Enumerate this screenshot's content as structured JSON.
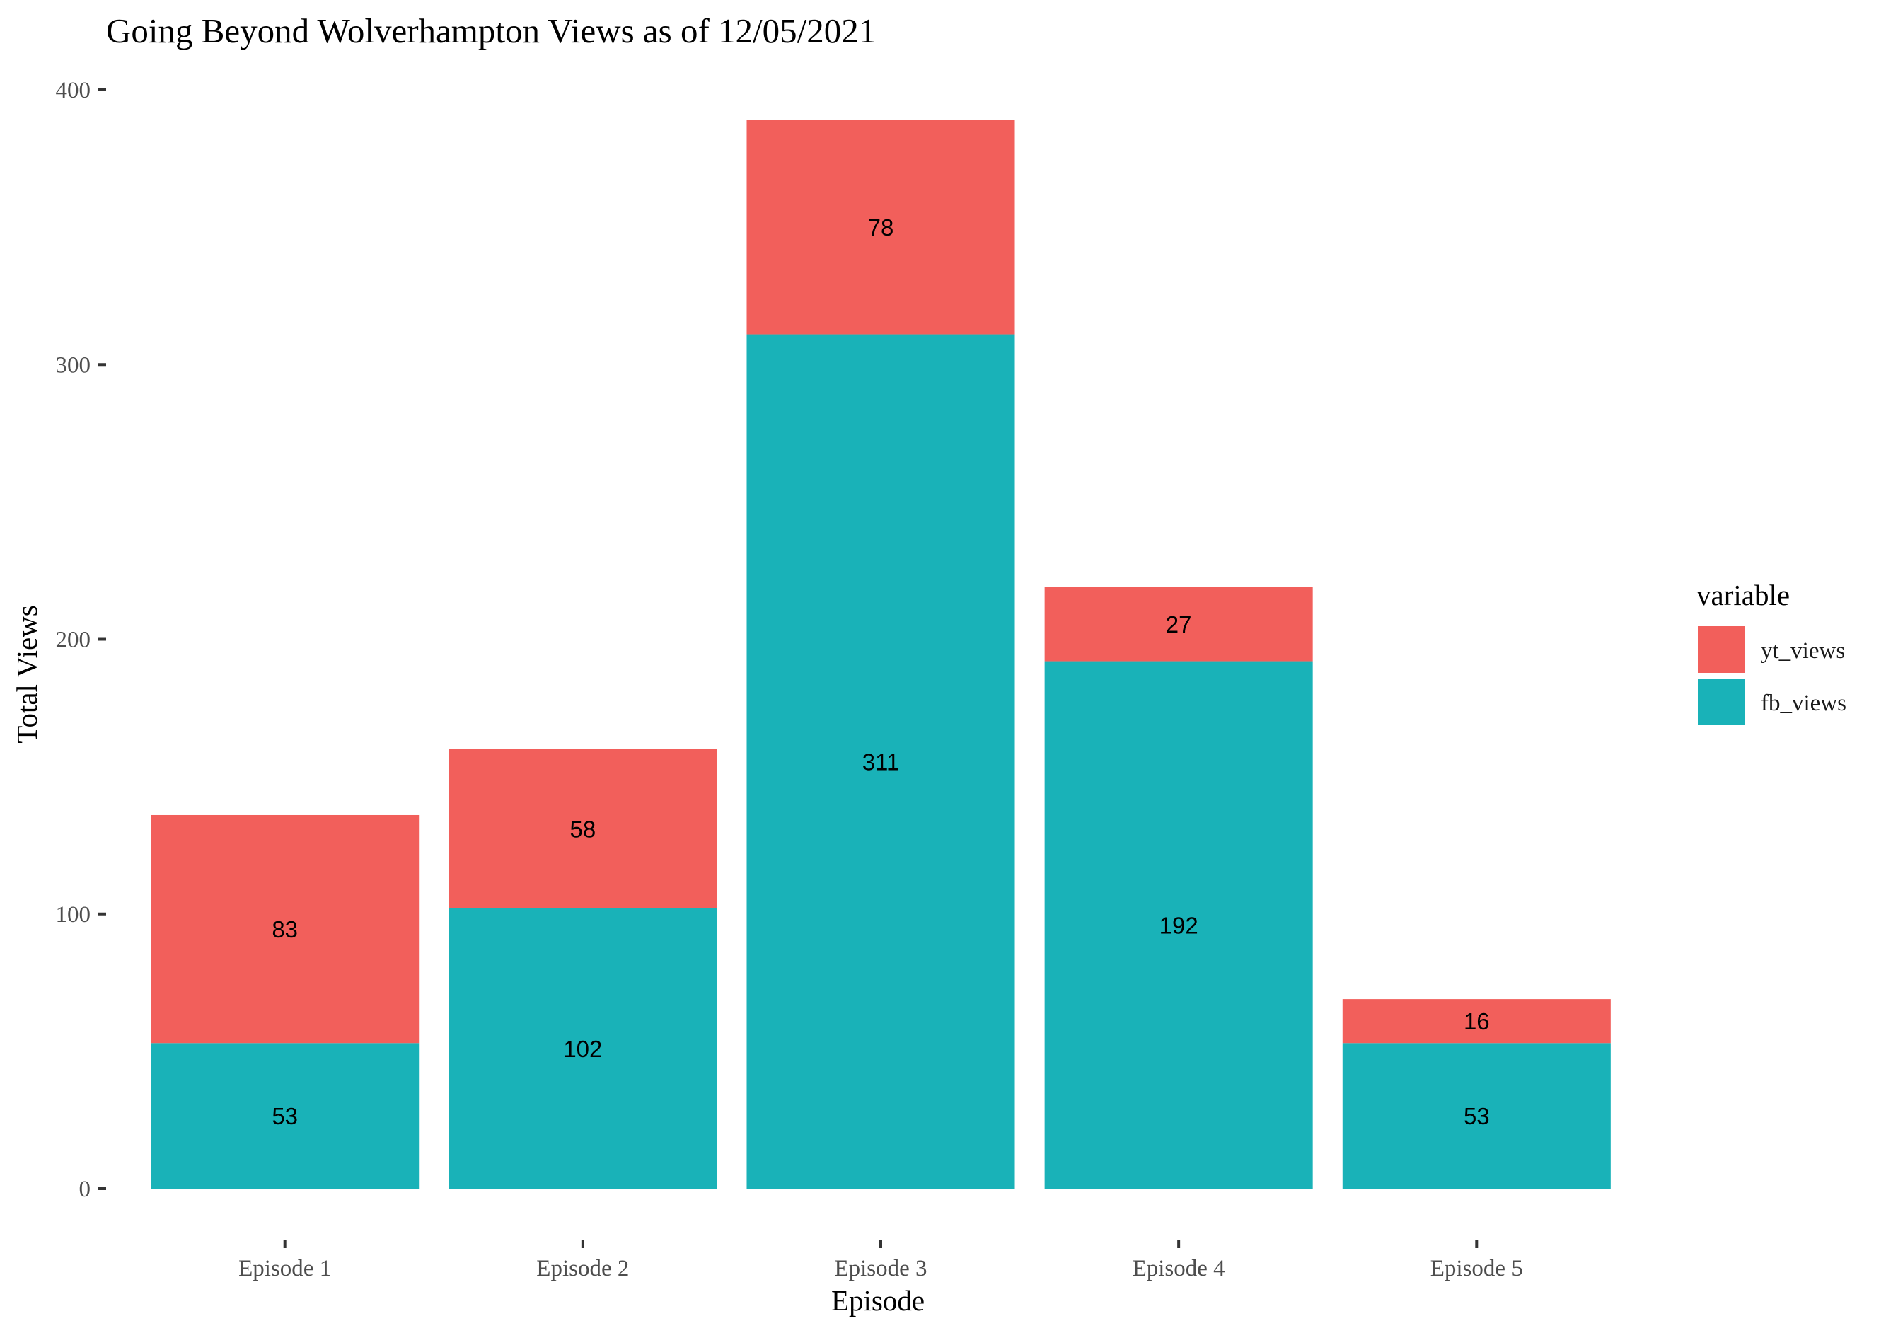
{
  "chart_data": {
    "type": "bar",
    "stacked": true,
    "title": "Going Beyond Wolverhampton Views as of 12/05/2021",
    "xlabel": "Episode",
    "ylabel": "Total Views",
    "categories": [
      "Episode 1",
      "Episode 2",
      "Episode 3",
      "Episode 4",
      "Episode 5"
    ],
    "series": [
      {
        "name": "fb_views",
        "color": "#19b2b8",
        "values": [
          53,
          102,
          311,
          192,
          53
        ]
      },
      {
        "name": "yt_views",
        "color": "#f25f5b",
        "values": [
          83,
          58,
          78,
          27,
          16
        ]
      }
    ],
    "ylim": [
      0,
      400
    ],
    "yticks": [
      0,
      100,
      200,
      300,
      400
    ],
    "grid": false,
    "legend": {
      "title": "variable",
      "position": "right",
      "entries": [
        "yt_views",
        "fb_views"
      ]
    }
  }
}
